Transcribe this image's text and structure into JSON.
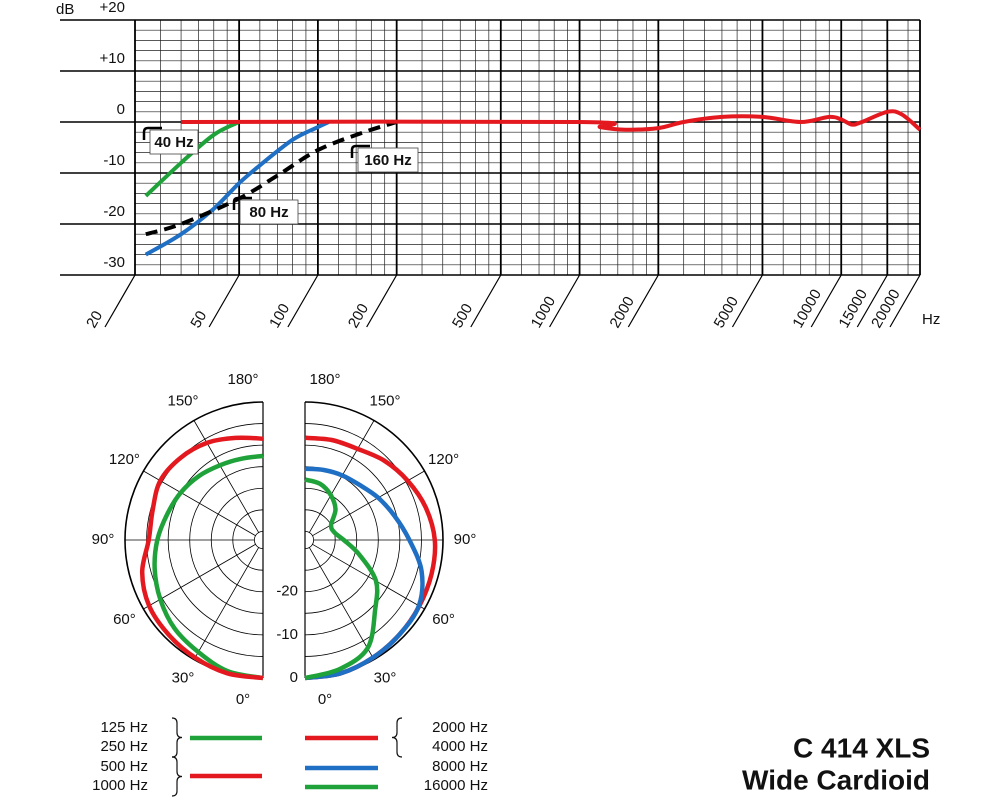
{
  "chart_data": [
    {
      "type": "line",
      "log_x": true,
      "ylabel": "dB",
      "xlabel": "Hz",
      "xlim": [
        20,
        20000
      ],
      "xticks": [
        20,
        50,
        100,
        200,
        500,
        1000,
        2000,
        5000,
        10000,
        15000,
        20000
      ],
      "xminor_ticks": [
        25,
        30,
        35,
        40,
        45,
        60,
        70,
        80,
        90,
        120,
        140,
        160,
        180,
        250,
        300,
        350,
        400,
        450,
        600,
        700,
        800,
        900,
        1200,
        1400,
        1600,
        1800,
        2500,
        3000,
        3500,
        4000,
        4500,
        6000,
        7000,
        8000,
        9000,
        12000,
        18000
      ],
      "ylim": [
        -30,
        20
      ],
      "yticks": [
        {
          "value": 20,
          "label": "+20"
        },
        {
          "value": 10,
          "label": "+10"
        },
        0,
        -10,
        -20,
        -30
      ],
      "yminor_ticks": [
        18,
        16,
        14,
        12,
        8,
        6,
        4,
        2,
        -2,
        -4,
        -6,
        -8,
        -12,
        -14,
        -16,
        -18,
        -22,
        -24,
        -26,
        -28
      ],
      "series": [
        {
          "name": "40 Hz",
          "color": "#1fa23a",
          "x": [
            22,
            30,
            40,
            50
          ],
          "values": [
            -14.5,
            -8,
            -2.5,
            0
          ]
        },
        {
          "name": "80 Hz",
          "color": "#1f6fc4",
          "x": [
            22,
            30,
            40,
            50,
            60,
            80,
            100,
            110
          ],
          "values": [
            -26,
            -22,
            -17,
            -12,
            -8.5,
            -3.5,
            -1,
            0
          ]
        },
        {
          "name": "160 Hz",
          "color": "#000000",
          "dashed": true,
          "x": [
            22,
            30,
            50,
            70,
            100,
            150,
            200
          ],
          "values": [
            -22,
            -20,
            -15,
            -10.5,
            -5.5,
            -2,
            0
          ]
        },
        {
          "color": "#e3191f",
          "x": [
            30,
            1000,
            1200,
            1500,
            2000,
            2500,
            3500,
            5000,
            7000,
            9000,
            10000,
            11000,
            12000,
            15000,
            17000,
            20000
          ],
          "values": [
            0,
            0,
            -1,
            -1.5,
            -1.2,
            0,
            1,
            1,
            0,
            1,
            0.5,
            -0.5,
            0,
            2,
            1.5,
            -1.5
          ]
        }
      ]
    },
    {
      "type": "polar",
      "title": "C 414 XLS",
      "subtitle": "Wide Cardioid",
      "angles": [
        0,
        15,
        30,
        45,
        60,
        75,
        90,
        105,
        120,
        135,
        150,
        165,
        180
      ],
      "angle_ticks": [
        {
          "value": 0,
          "label": "0°"
        },
        {
          "value": 30,
          "label": "30°"
        },
        {
          "value": 60,
          "label": "60°"
        },
        {
          "value": 90,
          "label": "90°"
        },
        {
          "value": 120,
          "label": "120°"
        },
        {
          "value": 150,
          "label": "150°"
        },
        {
          "value": 180,
          "label": "180°"
        }
      ],
      "rlim": [
        -32,
        0
      ],
      "rticks": [
        0,
        -10,
        -20
      ],
      "rminor_ticks": [
        -5,
        -15,
        -25,
        -30
      ],
      "series": [
        {
          "names": [
            "125 Hz",
            "250 Hz"
          ],
          "side": "left",
          "color": "#1fa23a",
          "values": [
            0,
            -0.5,
            -2,
            -3,
            -4.5,
            -6,
            -7.5,
            -9,
            -10,
            -11,
            -12,
            -12.5,
            -12.5
          ]
        },
        {
          "names": [
            "500 Hz",
            "1000 Hz"
          ],
          "side": "left",
          "color": "#e3191f",
          "values": [
            0,
            0,
            -0.5,
            -1,
            -1.5,
            -3,
            -5.5,
            -5.5,
            -4.5,
            -5,
            -6,
            -7.5,
            -8.5
          ]
        },
        {
          "names": [
            "2000 Hz",
            "4000 Hz"
          ],
          "side": "right",
          "color": "#e3191f",
          "values": [
            0,
            0,
            -0.5,
            -1,
            -1.4,
            -1.6,
            -1.9,
            -3,
            -4.5,
            -6,
            -7.6,
            -8,
            -8.3
          ]
        },
        {
          "names": [
            "8000 Hz"
          ],
          "side": "right",
          "color": "#1f6fc4",
          "values": [
            0,
            0,
            -0.5,
            -1,
            -1.5,
            -4,
            -7.8,
            -10.5,
            -12.4,
            -14,
            -14.7,
            -15.2,
            -15.5
          ]
        },
        {
          "names": [
            "16000 Hz"
          ],
          "side": "right",
          "color": "#1fa23a",
          "values": [
            0,
            -1,
            -3,
            -9,
            -13,
            -19,
            -23,
            -25,
            -25,
            -22,
            -20,
            -18.5,
            -18
          ]
        }
      ]
    }
  ]
}
